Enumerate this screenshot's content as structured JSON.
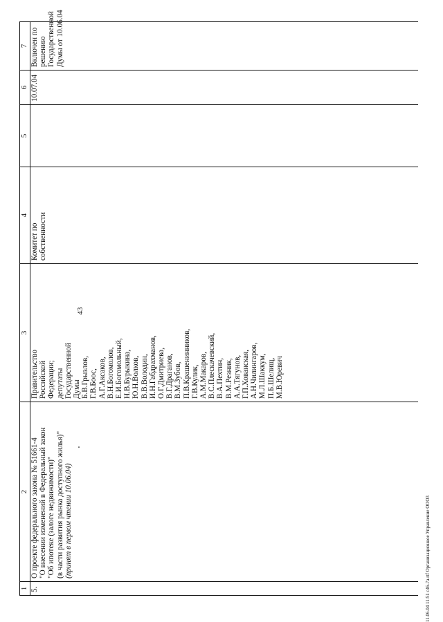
{
  "page_number": "43",
  "footer": "11.06.04 11:51 c46-7a.rtf Организационное Управление ООО3",
  "columns": [
    "1",
    "2",
    "3",
    "4",
    "5",
    "6",
    "7"
  ],
  "row": {
    "number": "5.",
    "title_lines": [
      "О проекте федерального закона № 51661-4",
      "\"О внесении изменений в Федеральный закон",
      "\"Об ипотеке (залоге недвижимости)\"",
      "(в части развития рынка доступного жилья)\""
    ],
    "note": "(принят в первом чтении 10.06.04)",
    "initiators": [
      "Правительство",
      "Российской",
      "Федерации;",
      "депутаты",
      "Государственной",
      "Думы",
      "Б.В.Грызлов,",
      "Г.В.Боос,",
      "А.Г.Аксаков,",
      "В.Н.Богомолов,",
      "Е.И.Богомольный,",
      "Н.В.Бурыкина,",
      "Ю.Н.Волков,",
      "В.В.Володин,",
      "И.Н.Габдрахманов,",
      "О.Г.Дмитриева,",
      "В.Г.Драганов,",
      "В.М.Зубов,",
      "П.В.Крашенинников,",
      "Г.В.Кулик,",
      "А.М.Макаров,",
      "В.С.Плескачевский,",
      "В.А.Пехтин,",
      "В.М.Резник,",
      "А.А.Тягунов,",
      "Г.П.Хованская,",
      "А.Н.Чилингаров,",
      "М.Л.Шаккум,",
      "П.Б.Шелищ,",
      "М.В.Юревич"
    ],
    "committee": [
      "Комитет по",
      "собственности"
    ],
    "col5": "",
    "date": "10.07.04",
    "remark": [
      "Включен по",
      "решению",
      "Государственной",
      "Думы от 10.06.04"
    ]
  }
}
